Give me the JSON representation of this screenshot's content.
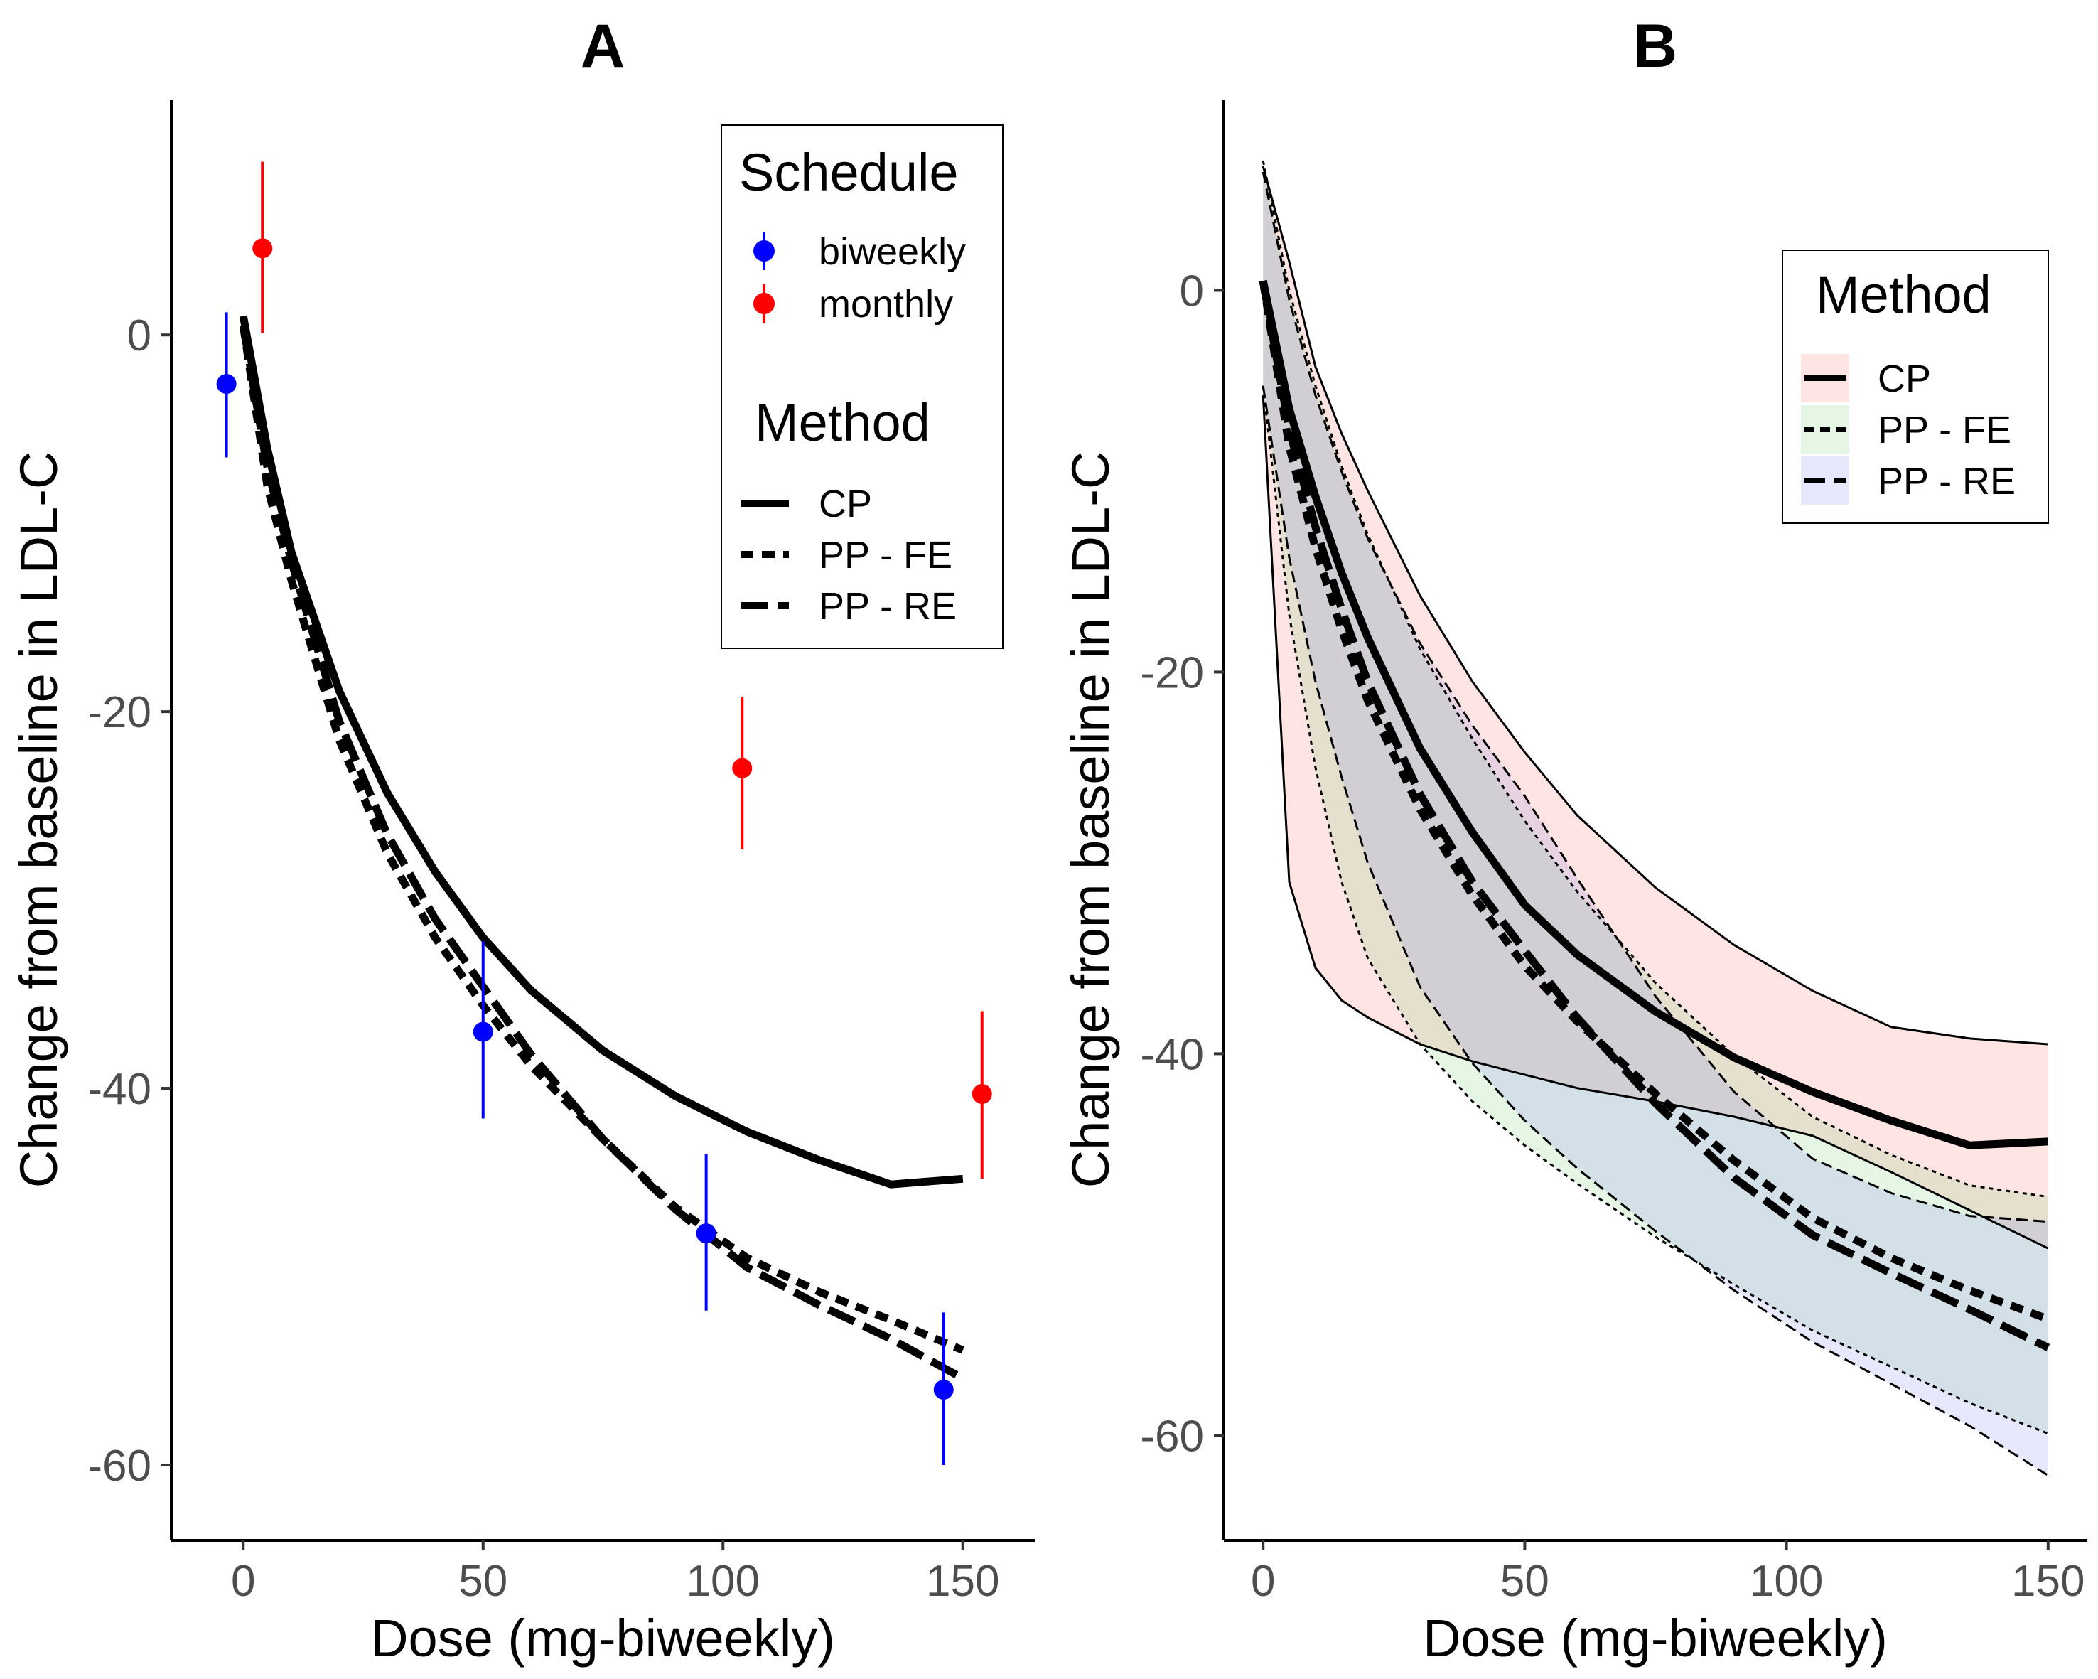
{
  "chart_data": [
    {
      "panel": "A",
      "type": "line",
      "title": "A",
      "xlabel": "Dose (mg-biweekly)",
      "ylabel": "Change from baseline in LDL-C",
      "xlim": [
        -15,
        165
      ],
      "ylim": [
        -64,
        12.5
      ],
      "xticks": [
        "0",
        "50",
        "100",
        "150"
      ],
      "yticks": [
        "0",
        "-20",
        "-40",
        "-60"
      ],
      "grid": false,
      "points_legend": {
        "title": "Schedule",
        "entries": [
          {
            "label": "biweekly",
            "color": "#0000ff"
          },
          {
            "label": "monthly",
            "color": "#ff0000"
          }
        ]
      },
      "lines_legend": {
        "title": "Method",
        "entries": [
          {
            "label": "CP",
            "dash": "solid"
          },
          {
            "label": "PP - FE",
            "dash": "dotted"
          },
          {
            "label": "PP - RE",
            "dash": "dashed"
          }
        ]
      },
      "points": [
        {
          "schedule": "biweekly",
          "x": -3.5,
          "y": -2.6,
          "lo": -6.5,
          "hi": 1.2
        },
        {
          "schedule": "monthly",
          "x": 4,
          "y": 4.6,
          "lo": 0.1,
          "hi": 9.2
        },
        {
          "schedule": "biweekly",
          "x": 50,
          "y": -37.0,
          "lo": -41.6,
          "hi": -32.2
        },
        {
          "schedule": "monthly",
          "x": 104,
          "y": -23.0,
          "lo": -27.3,
          "hi": -19.2
        },
        {
          "schedule": "biweekly",
          "x": 96.5,
          "y": -47.7,
          "lo": -51.8,
          "hi": -43.5
        },
        {
          "schedule": "biweekly",
          "x": 146,
          "y": -56.0,
          "lo": -60.0,
          "hi": -51.9
        },
        {
          "schedule": "monthly",
          "x": 154,
          "y": -40.3,
          "lo": -44.8,
          "hi": -35.9
        }
      ],
      "series": [
        {
          "name": "CP",
          "x": [
            0,
            5,
            10,
            20,
            30,
            40,
            50,
            60,
            75,
            90,
            105,
            120,
            135,
            150
          ],
          "y": [
            1,
            -6,
            -11.5,
            -18.9,
            -24.3,
            -28.5,
            -32,
            -34.8,
            -38,
            -40.4,
            -42.3,
            -43.8,
            -45.1,
            -44.8
          ]
        },
        {
          "name": "PP - FE",
          "x": [
            0,
            5,
            10,
            20,
            30,
            40,
            50,
            60,
            75,
            90,
            105,
            120,
            135,
            150
          ],
          "y": [
            0.5,
            -8,
            -13,
            -21.5,
            -27.5,
            -32,
            -35.6,
            -38.8,
            -42.7,
            -46.3,
            -49,
            -50.8,
            -52.3,
            -53.9
          ]
        },
        {
          "name": "PP - RE",
          "x": [
            0,
            5,
            10,
            20,
            30,
            40,
            50,
            60,
            75,
            90,
            105,
            120,
            135,
            150
          ],
          "y": [
            0.5,
            -7,
            -12,
            -20.5,
            -26.5,
            -31,
            -34.6,
            -38.2,
            -42.7,
            -46.4,
            -49.5,
            -51.5,
            -53.3,
            -55.4
          ]
        }
      ]
    },
    {
      "panel": "B",
      "type": "area",
      "title": "B",
      "xlabel": "Dose (mg-biweekly)",
      "ylabel": "Change from baseline in LDL-C",
      "xlim": [
        -7.5,
        157.5
      ],
      "ylim": [
        -65.5,
        10
      ],
      "xticks": [
        "0",
        "50",
        "100",
        "150"
      ],
      "yticks": [
        "0",
        "-20",
        "-40",
        "-60"
      ],
      "grid": false,
      "legend": {
        "title": "Method",
        "entries": [
          {
            "label": "CP",
            "dash": "solid",
            "fill": "#f8766d"
          },
          {
            "label": "PP - FE",
            "dash": "dotted",
            "fill": "#7cd07c"
          },
          {
            "label": "PP - RE",
            "dash": "dashed",
            "fill": "#8e8ef0"
          }
        ]
      },
      "series": [
        {
          "name": "CP",
          "x": [
            0,
            5,
            10,
            15,
            20,
            30,
            40,
            50,
            60,
            75,
            90,
            105,
            120,
            135,
            150
          ],
          "y": [
            0.5,
            -6.2,
            -10.8,
            -14.8,
            -18.2,
            -24,
            -28.4,
            -32.2,
            -34.8,
            -37.8,
            -40.2,
            -42,
            -43.5,
            -44.8,
            -44.6
          ],
          "lower": [
            -5.5,
            -31,
            -35.5,
            -37.2,
            -38.1,
            -39.5,
            -40.4,
            -41.1,
            -41.8,
            -42.5,
            -43.3,
            -44.3,
            -46.2,
            -48.2,
            -50.2
          ],
          "upper": [
            6.5,
            1.5,
            -4,
            -7.5,
            -10.5,
            -16,
            -20.5,
            -24.2,
            -27.5,
            -31.3,
            -34.3,
            -36.7,
            -38.6,
            -39.2,
            -39.5
          ]
        },
        {
          "name": "PP - FE",
          "x": [
            0,
            5,
            10,
            15,
            20,
            30,
            40,
            50,
            60,
            75,
            90,
            105,
            120,
            135,
            150
          ],
          "y": [
            0.5,
            -8.2,
            -13.5,
            -17.8,
            -21.5,
            -27.2,
            -31.7,
            -35.4,
            -38.3,
            -42.1,
            -45.6,
            -48.6,
            -50.7,
            -52.4,
            -53.9
          ],
          "lower": [
            -5,
            -17,
            -25,
            -31,
            -35,
            -39.5,
            -42.5,
            -44.8,
            -46.8,
            -49.6,
            -52.1,
            -54.5,
            -56.4,
            -58.3,
            -59.9
          ],
          "upper": [
            6.8,
            0,
            -5,
            -9.2,
            -12.8,
            -18.8,
            -23.5,
            -27.8,
            -31.5,
            -36.3,
            -40.1,
            -43.3,
            -45.3,
            -46.9,
            -47.5
          ]
        },
        {
          "name": "PP - RE",
          "x": [
            0,
            5,
            10,
            15,
            20,
            30,
            40,
            50,
            60,
            75,
            90,
            105,
            120,
            135,
            150
          ],
          "y": [
            0.5,
            -7.3,
            -12.4,
            -16.7,
            -20.5,
            -26.4,
            -31,
            -34.6,
            -38.1,
            -42.6,
            -46.5,
            -49.5,
            -51.5,
            -53.4,
            -55.4
          ],
          "lower": [
            -5,
            -14,
            -20.5,
            -25.5,
            -30,
            -36.5,
            -40.5,
            -43.5,
            -46,
            -49.3,
            -52.4,
            -55.1,
            -57.3,
            -59.5,
            -62.1
          ],
          "upper": [
            6.2,
            -0.5,
            -5.5,
            -9.5,
            -13,
            -18.5,
            -22.8,
            -26.5,
            -30.8,
            -37,
            -42,
            -45.5,
            -47.3,
            -48.5,
            -48.8
          ]
        }
      ]
    }
  ]
}
